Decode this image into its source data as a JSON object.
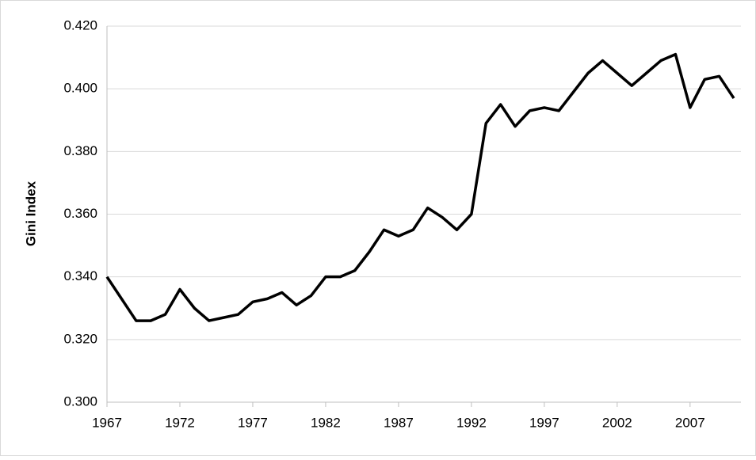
{
  "chart_data": {
    "type": "line",
    "y_label": "Gini Index",
    "x": [
      1967,
      1968,
      1969,
      1970,
      1971,
      1972,
      1973,
      1974,
      1975,
      1976,
      1977,
      1978,
      1979,
      1980,
      1981,
      1982,
      1983,
      1984,
      1985,
      1986,
      1987,
      1988,
      1989,
      1990,
      1991,
      1992,
      1993,
      1994,
      1995,
      1996,
      1997,
      1998,
      1999,
      2000,
      2001,
      2002,
      2003,
      2004,
      2005,
      2006,
      2007,
      2008,
      2009,
      2010
    ],
    "series": [
      {
        "color": "#000000",
        "values": [
          0.34,
          0.333,
          0.326,
          0.326,
          0.328,
          0.336,
          0.33,
          0.326,
          0.327,
          0.328,
          0.332,
          0.333,
          0.335,
          0.331,
          0.334,
          0.34,
          0.34,
          0.342,
          0.348,
          0.355,
          0.353,
          0.355,
          0.362,
          0.359,
          0.355,
          0.36,
          0.389,
          0.395,
          0.388,
          0.393,
          0.394,
          0.393,
          0.399,
          0.405,
          0.409,
          0.405,
          0.401,
          0.405,
          0.409,
          0.411,
          0.394,
          0.403,
          0.404,
          0.397
        ]
      }
    ],
    "xlim": [
      1967,
      2010
    ],
    "xticks": [
      1967,
      1972,
      1977,
      1982,
      1987,
      1992,
      1997,
      2002,
      2007
    ],
    "ylim": [
      0.3,
      0.42
    ],
    "yticks": [
      {
        "value": 0.3,
        "label": "0.300"
      },
      {
        "value": 0.32,
        "label": "0.320"
      },
      {
        "value": 0.34,
        "label": "0.340"
      },
      {
        "value": 0.36,
        "label": "0.360"
      },
      {
        "value": 0.38,
        "label": "0.380"
      },
      {
        "value": 0.4,
        "label": "0.400"
      },
      {
        "value": 0.42,
        "label": "0.420"
      }
    ],
    "grid": true
  }
}
